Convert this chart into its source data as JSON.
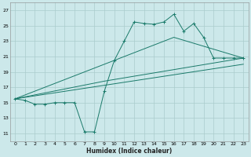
{
  "xlabel": "Humidex (Indice chaleur)",
  "xlim": [
    -0.5,
    23.5
  ],
  "ylim": [
    10,
    28
  ],
  "yticks": [
    11,
    13,
    15,
    17,
    19,
    21,
    23,
    25,
    27
  ],
  "xticks": [
    0,
    1,
    2,
    3,
    4,
    5,
    6,
    7,
    8,
    9,
    10,
    11,
    12,
    13,
    14,
    15,
    16,
    17,
    18,
    19,
    20,
    21,
    22,
    23
  ],
  "bg_color": "#cce8ea",
  "grid_color": "#aacccc",
  "line_color": "#1a7a6a",
  "lines": [
    {
      "x": [
        0,
        1,
        2,
        3,
        4,
        5,
        6,
        7,
        8,
        9,
        10,
        11,
        12,
        13,
        14,
        15,
        16,
        17,
        18,
        19,
        20,
        21,
        22,
        23
      ],
      "y": [
        15.5,
        15.3,
        14.8,
        14.8,
        15.0,
        15.0,
        15.0,
        11.2,
        11.2,
        16.5,
        20.5,
        23.0,
        25.5,
        25.3,
        25.2,
        25.5,
        26.5,
        24.3,
        25.3,
        23.5,
        20.8,
        20.8,
        20.8,
        20.8
      ],
      "marker": true
    },
    {
      "x": [
        0,
        23
      ],
      "y": [
        15.5,
        20.0
      ],
      "marker": false
    },
    {
      "x": [
        0,
        9,
        23
      ],
      "y": [
        15.5,
        17.8,
        20.8
      ],
      "marker": false
    },
    {
      "x": [
        0,
        16,
        23
      ],
      "y": [
        15.5,
        23.5,
        20.8
      ],
      "marker": false
    }
  ]
}
